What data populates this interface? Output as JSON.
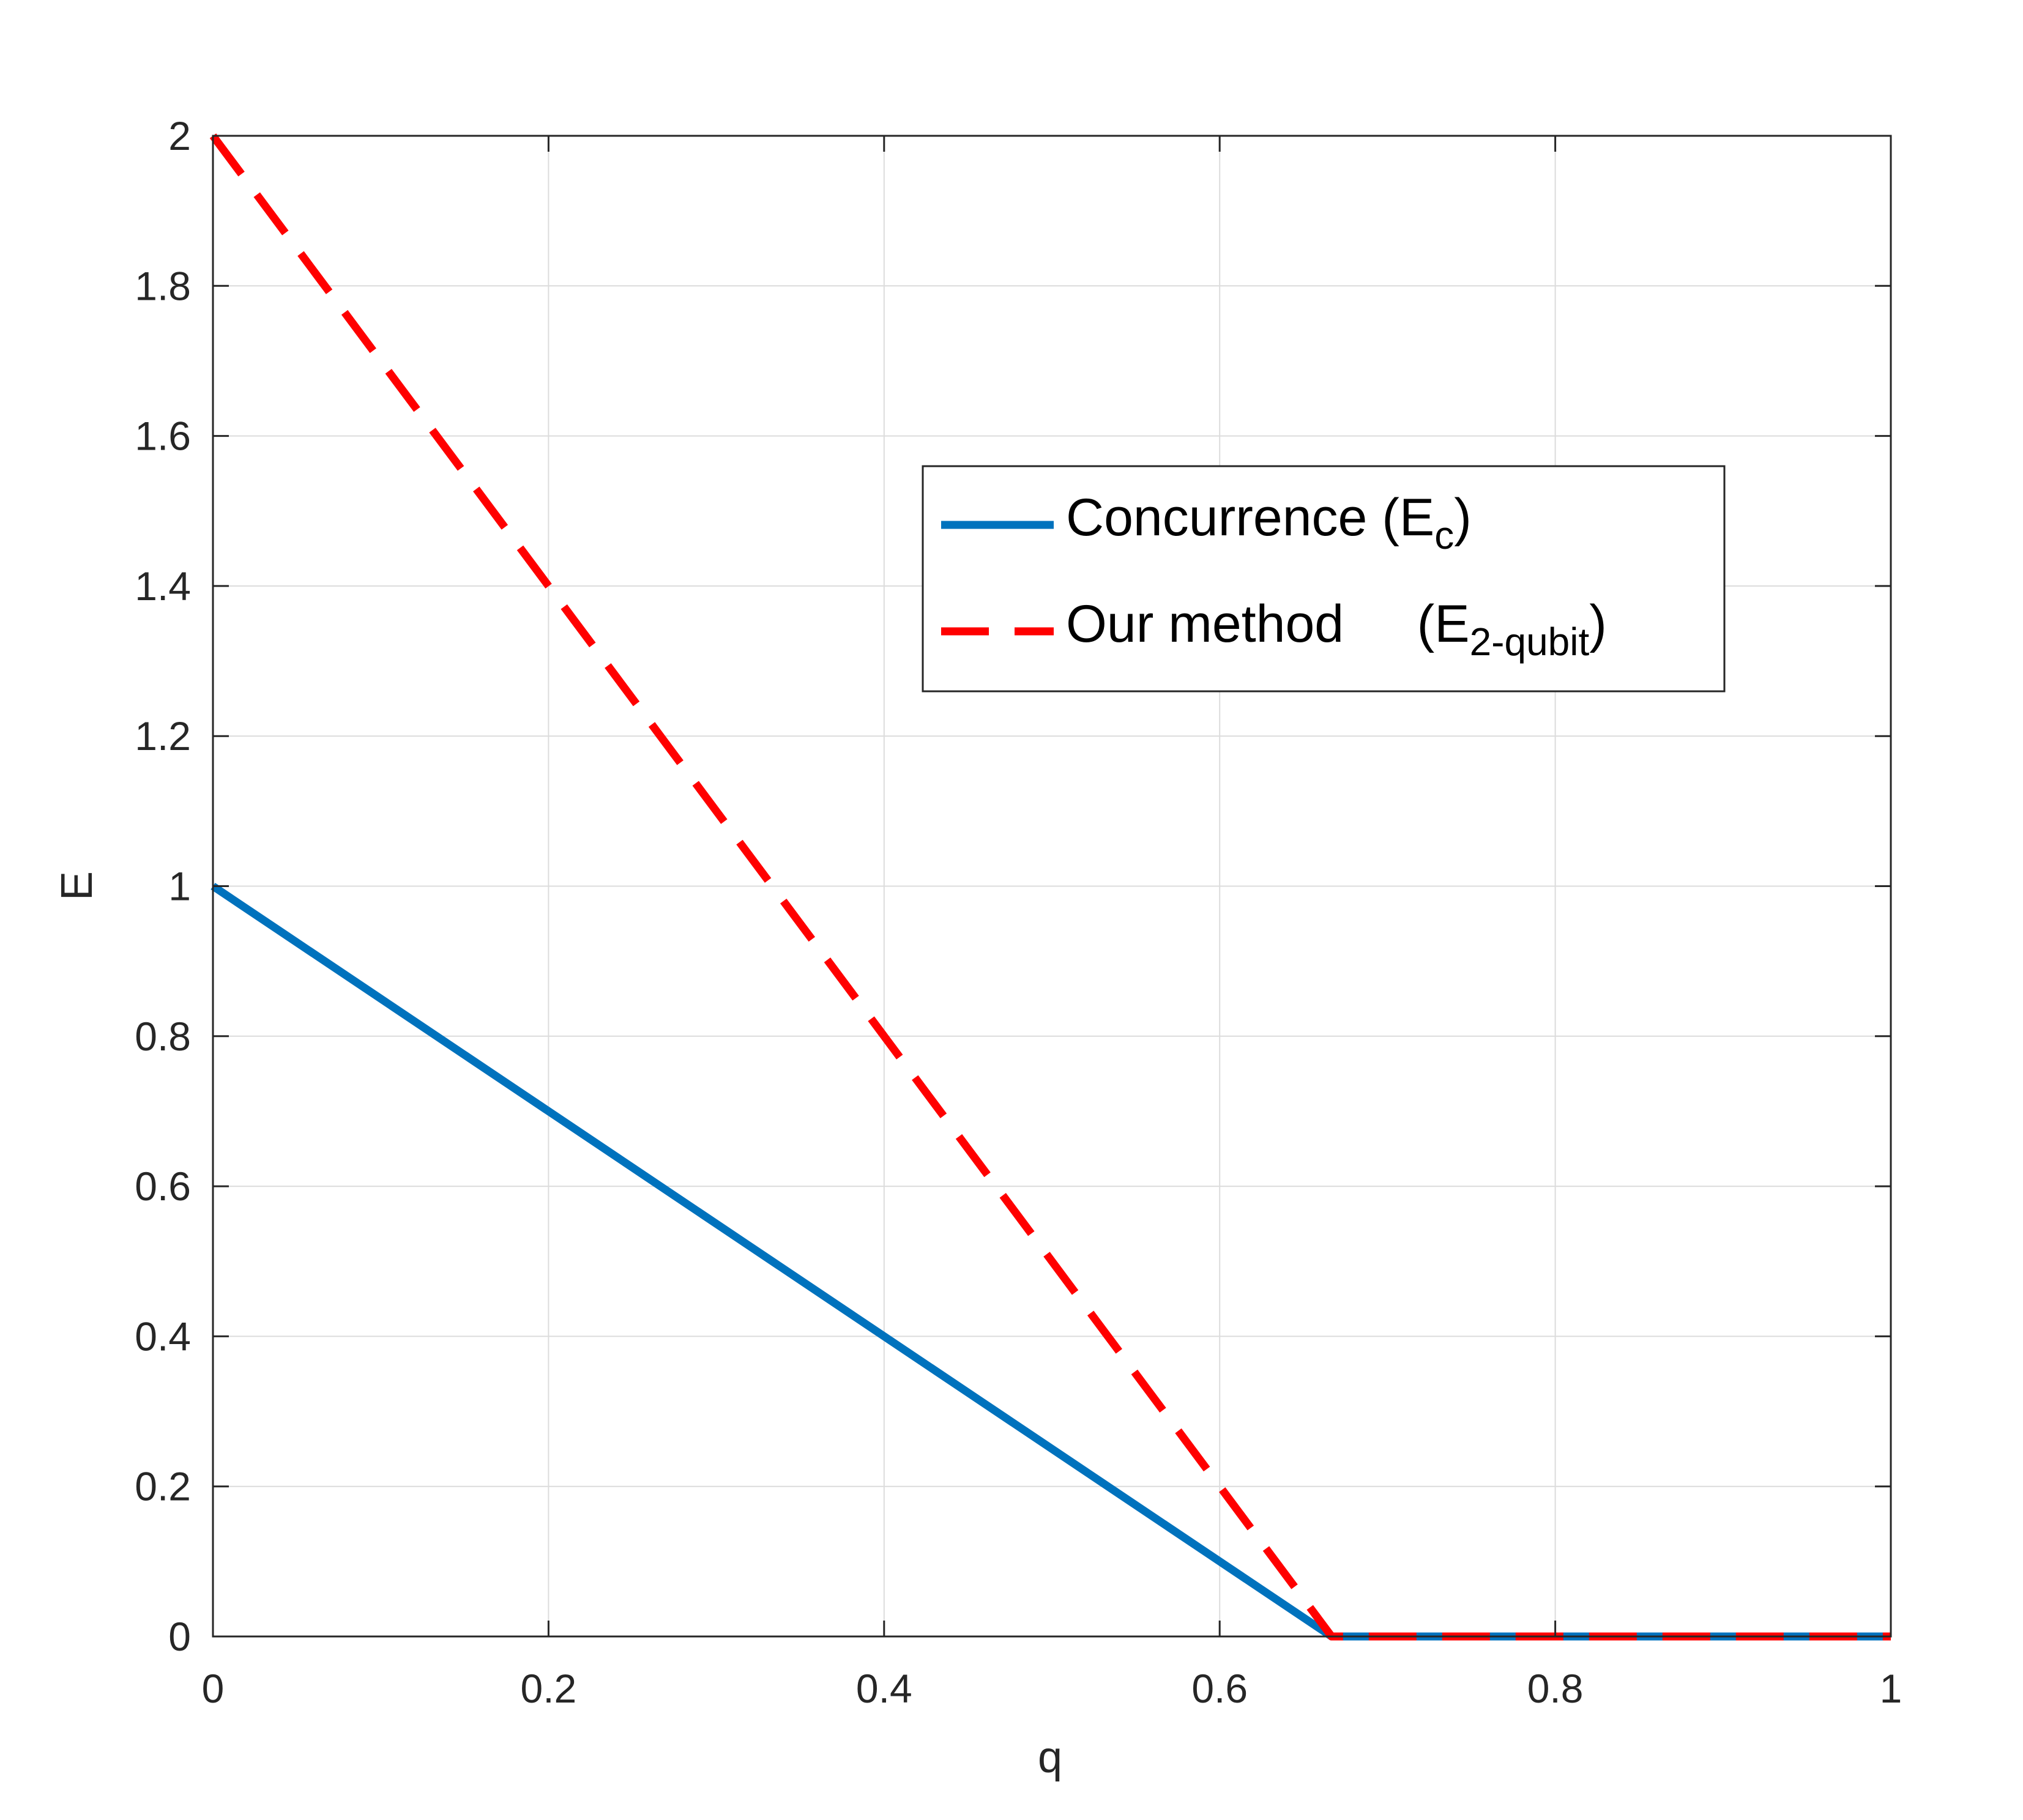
{
  "chart_data": {
    "type": "line",
    "xlabel": "q",
    "ylabel": "E",
    "xlim": [
      0,
      1
    ],
    "ylim": [
      0,
      2
    ],
    "x_ticks": [
      "0",
      "0.2",
      "0.4",
      "0.6",
      "0.8",
      "1"
    ],
    "y_ticks": [
      "0",
      "0.2",
      "0.4",
      "0.6",
      "0.8",
      "1",
      "1.2",
      "1.4",
      "1.6",
      "1.8",
      "2"
    ],
    "grid": true,
    "legend_position": "upper-right inside plot",
    "series": [
      {
        "name": "Concurrence   (E",
        "name_sub": "c",
        "name_end": ")",
        "color": "#0072BD",
        "style": "solid",
        "x": [
          0,
          0.6667,
          1
        ],
        "y": [
          1,
          0,
          0
        ]
      },
      {
        "name": "Our method     (E",
        "name_sub": "2-qubit",
        "name_end": ")",
        "color": "#FF0000",
        "style": "dashed",
        "x": [
          0,
          0.6667,
          1
        ],
        "y": [
          2,
          0,
          0
        ]
      }
    ]
  }
}
